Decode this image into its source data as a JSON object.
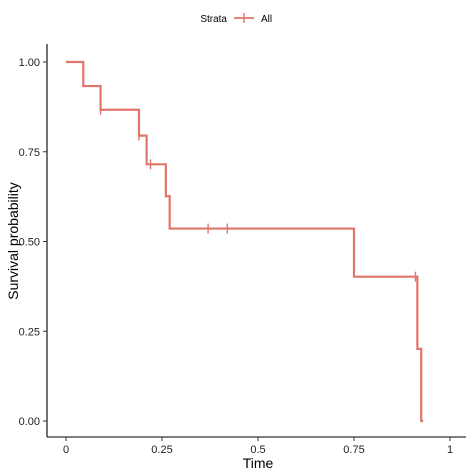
{
  "chart_data": {
    "type": "line",
    "xlabel": "Time",
    "ylabel": "Survival probability",
    "xlim": [
      0,
      1
    ],
    "ylim": [
      0,
      1
    ],
    "x_ticks": [
      0,
      0.25,
      0.5,
      0.75,
      1
    ],
    "x_tick_labels": [
      "0",
      "0.25",
      "0.5",
      "0.75",
      "1"
    ],
    "y_ticks": [
      0,
      0.25,
      0.5,
      0.75,
      1
    ],
    "y_tick_labels": [
      "0.00",
      "0.25",
      "0.50",
      "0.75",
      "1.00"
    ],
    "grid": false,
    "legend": {
      "title": "Strata",
      "placement": "top",
      "entries": [
        "All"
      ]
    },
    "series": [
      {
        "name": "All",
        "color": "#e0756b",
        "step_x": [
          0,
          0.045,
          0.09,
          0.19,
          0.21,
          0.26,
          0.27,
          0.75,
          0.915,
          0.925,
          0.93
        ],
        "step_y": [
          1.0,
          0.933,
          0.867,
          0.795,
          0.715,
          0.626,
          0.536,
          0.402,
          0.201,
          0.0,
          0.0
        ],
        "censor_x": [
          0.09,
          0.19,
          0.22,
          0.37,
          0.42,
          0.91
        ],
        "censor_y": [
          0.867,
          0.795,
          0.715,
          0.536,
          0.536,
          0.402
        ]
      }
    ]
  }
}
